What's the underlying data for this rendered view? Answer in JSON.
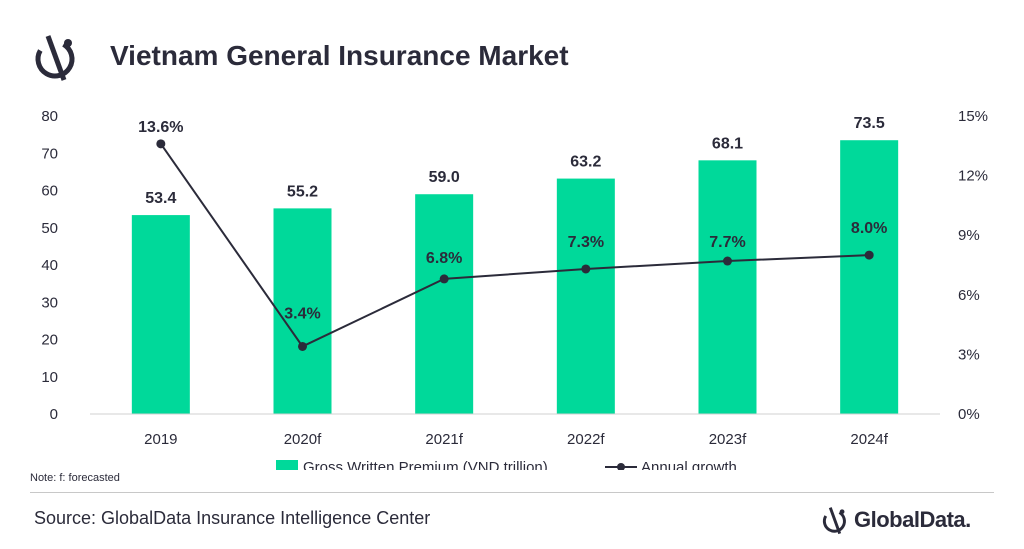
{
  "header": {
    "title": "Vietnam General Insurance Market",
    "logo_icon": "globaldata-logo-icon"
  },
  "chart_data": {
    "type": "bar",
    "title": "Vietnam General Insurance Market",
    "categories": [
      "2019",
      "2020f",
      "2021f",
      "2022f",
      "2023f",
      "2024f"
    ],
    "series": [
      {
        "name": "Gross Written Premium (VND trillion)",
        "type": "bar",
        "axis": "left",
        "values": [
          53.4,
          55.2,
          59.0,
          63.2,
          68.1,
          73.5
        ],
        "labels": [
          "53.4",
          "55.2",
          "59.0",
          "63.2",
          "68.1",
          "73.5"
        ],
        "color": "#00d99a"
      },
      {
        "name": "Annual growth",
        "type": "line",
        "axis": "right",
        "values": [
          13.6,
          3.4,
          6.8,
          7.3,
          7.7,
          8.0
        ],
        "labels": [
          "13.6%",
          "3.4%",
          "6.8%",
          "7.3%",
          "7.7%",
          "8.0%"
        ],
        "color": "#2b2b3a"
      }
    ],
    "y_left": {
      "range": [
        0,
        80
      ],
      "ticks": [
        "0",
        "10",
        "20",
        "30",
        "40",
        "50",
        "60",
        "70",
        "80"
      ]
    },
    "y_right": {
      "range": [
        0,
        15
      ],
      "ticks": [
        "0%",
        "3%",
        "6%",
        "9%",
        "12%",
        "15%"
      ]
    },
    "grid": false,
    "legend": "bottom-center"
  },
  "footer": {
    "note": "Note: f: forecasted",
    "source": "Source: GlobalData Insurance Intelligence Center",
    "brand": "GlobalData."
  }
}
